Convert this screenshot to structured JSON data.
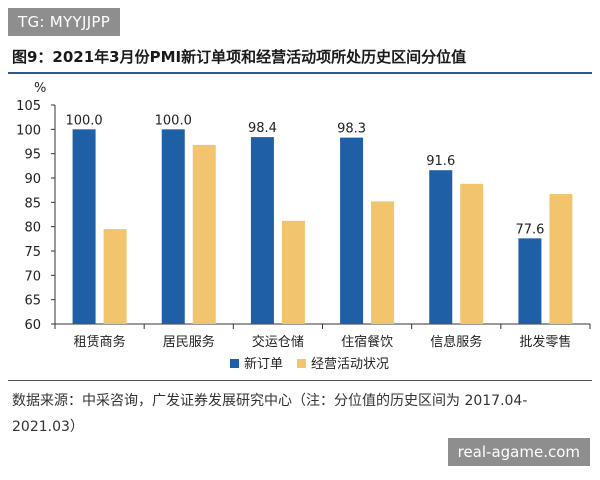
{
  "watermark_top": "TG: MYYJJPP",
  "watermark_bottom": "real-agame.com",
  "source_text": "数据来源：中采咨询，广发证券发展研究中心（注：分位值的历史区间为 2017.04-2021.03）",
  "chart_data": {
    "type": "bar",
    "title": "图9：2021年3月份PMI新订单项和经营活动项所处历史区间分位值",
    "ylabel": "%",
    "ylim": [
      60,
      105
    ],
    "yticks": [
      60,
      65,
      70,
      75,
      80,
      85,
      90,
      95,
      100,
      105
    ],
    "categories": [
      "租赁商务",
      "居民服务",
      "交运仓储",
      "住宿餐饮",
      "信息服务",
      "批发零售"
    ],
    "series": [
      {
        "name": "新订单",
        "color": "#1f5fa6",
        "values": [
          100.0,
          100.0,
          98.4,
          98.3,
          91.6,
          77.6
        ],
        "labels": [
          "100.0",
          "100.0",
          "98.4",
          "98.3",
          "91.6",
          "77.6"
        ]
      },
      {
        "name": "经营活动状况",
        "color": "#f2c46d",
        "values": [
          79.5,
          96.8,
          81.2,
          85.2,
          88.8,
          86.7
        ]
      }
    ],
    "legend_position": "bottom",
    "grid": false
  }
}
